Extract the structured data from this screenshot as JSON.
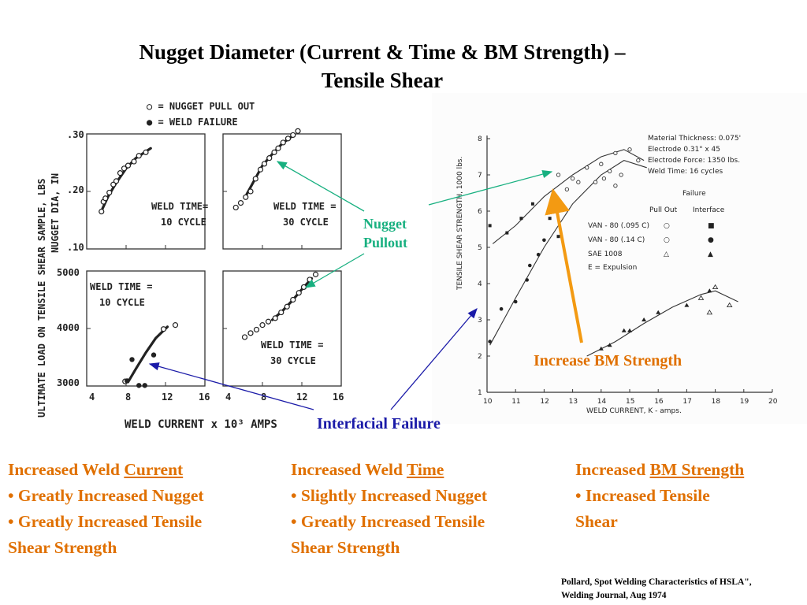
{
  "slide": {
    "title_line1": "Nugget Diameter (Current & Time & BM Strength) –",
    "title_line2": "Tensile Shear",
    "annotations": {
      "nugget_pullout_line1": "Nugget",
      "nugget_pullout_line2": "Pullout",
      "increase_bm": "Increase BM Strength",
      "interfacial_failure": "Interfacial Failure"
    },
    "columns": [
      {
        "prefix": "Increased Weld ",
        "keyword": "Current",
        "line1": "• Greatly Increased Nugget",
        "line2": "• Greatly Increased Tensile",
        "line3": "Shear Strength"
      },
      {
        "prefix": "Increased Weld ",
        "keyword": "Time",
        "line1": "• Slightly Increased Nugget",
        "line2": "• Greatly Increased Tensile",
        "line3": "Shear Strength"
      },
      {
        "prefix": "Increased ",
        "keyword": "BM Strength",
        "line1": "• Increased Tensile",
        "line2": "Shear",
        "line3": ""
      }
    ],
    "citation_line1": "Pollard, Spot Welding Characteristics of HSLA\",",
    "citation_line2": "Welding Journal, Aug 1974",
    "colors": {
      "orange": "#e07000",
      "green": "#18b080",
      "blue": "#1a1aa8",
      "arrow_orange": "#f39a12"
    }
  },
  "chart_data": [
    {
      "type": "scatter",
      "panel": "nugget-10-cycle",
      "legend": [
        "○ = NUGGET PULL OUT",
        "● = WELD FAILURE"
      ],
      "ylabel": "NUGGET DIA, IN",
      "yticks": [
        ".10",
        ".20",
        ".30"
      ],
      "ylim": [
        0.1,
        0.3
      ],
      "xlim": [
        4,
        16
      ],
      "label_line1": "WELD TIME=",
      "label_line2": "10 CYCLE",
      "pullout": [
        [
          5.5,
          0.165
        ],
        [
          5.7,
          0.182
        ],
        [
          5.9,
          0.188
        ],
        [
          6.3,
          0.198
        ],
        [
          6.7,
          0.212
        ],
        [
          7.0,
          0.218
        ],
        [
          7.4,
          0.232
        ],
        [
          7.8,
          0.24
        ],
        [
          8.2,
          0.245
        ],
        [
          8.8,
          0.252
        ],
        [
          9.3,
          0.262
        ],
        [
          10.0,
          0.268
        ]
      ],
      "fitline": [
        [
          5.6,
          0.17
        ],
        [
          6.2,
          0.192
        ],
        [
          7.0,
          0.215
        ],
        [
          8.0,
          0.24
        ],
        [
          9.0,
          0.258
        ],
        [
          10.5,
          0.275
        ]
      ]
    },
    {
      "type": "scatter",
      "panel": "nugget-30-cycle",
      "ylim": [
        0.1,
        0.3
      ],
      "xlim": [
        4,
        16
      ],
      "label_line1": "WELD TIME =",
      "label_line2": "30 CYCLE",
      "pullout": [
        [
          5.3,
          0.172
        ],
        [
          5.8,
          0.18
        ],
        [
          6.3,
          0.19
        ],
        [
          6.8,
          0.2
        ],
        [
          7.3,
          0.222
        ],
        [
          7.8,
          0.238
        ],
        [
          8.2,
          0.248
        ],
        [
          8.7,
          0.258
        ],
        [
          9.2,
          0.268
        ],
        [
          9.6,
          0.275
        ],
        [
          10.1,
          0.285
        ],
        [
          10.6,
          0.292
        ],
        [
          11.1,
          0.298
        ],
        [
          11.6,
          0.305
        ]
      ],
      "fitline": [
        [
          6.4,
          0.195
        ],
        [
          7.2,
          0.22
        ],
        [
          8.0,
          0.245
        ],
        [
          9.0,
          0.265
        ],
        [
          10.0,
          0.283
        ],
        [
          11.0,
          0.296
        ]
      ]
    },
    {
      "type": "scatter",
      "panel": "load-10-cycle",
      "ylabel": "ULTIMATE LOAD ON TENSILE SHEAR SAMPLE, LBS",
      "yticks": [
        "3000",
        "4000",
        "5000"
      ],
      "ylim": [
        3000,
        5000
      ],
      "xticks": [
        "4",
        "8",
        "12",
        "16"
      ],
      "xlim": [
        4,
        16
      ],
      "xlabel": "WELD CURRENT x 10³ AMPS",
      "label_line1": "WELD TIME =",
      "label_line2": "10 CYCLE",
      "pullout": [
        [
          11.8,
          3990
        ],
        [
          13.0,
          4060
        ],
        [
          7.9,
          3080
        ]
      ],
      "failure": [
        [
          8.1,
          3090
        ],
        [
          8.6,
          3460
        ],
        [
          9.3,
          3010
        ],
        [
          9.9,
          3010
        ],
        [
          10.8,
          3540
        ]
      ],
      "fitline": [
        [
          8.2,
          3070
        ],
        [
          9.0,
          3300
        ],
        [
          10.0,
          3580
        ],
        [
          11.0,
          3830
        ],
        [
          12.2,
          4030
        ]
      ]
    },
    {
      "type": "scatter",
      "panel": "load-30-cycle",
      "ylim": [
        3000,
        5000
      ],
      "xticks": [
        "4",
        "8",
        "12",
        "16"
      ],
      "xlim": [
        4,
        16
      ],
      "label_line1": "WELD TIME =",
      "label_line2": "30 CYCLE",
      "pullout": [
        [
          6.2,
          3850
        ],
        [
          6.8,
          3920
        ],
        [
          7.4,
          3980
        ],
        [
          8.0,
          4060
        ],
        [
          8.6,
          4120
        ],
        [
          9.3,
          4180
        ],
        [
          9.9,
          4280
        ],
        [
          10.5,
          4380
        ],
        [
          11.1,
          4500
        ],
        [
          11.7,
          4620
        ],
        [
          12.2,
          4720
        ],
        [
          12.8,
          4850
        ],
        [
          13.4,
          4940
        ]
      ],
      "fitline": [
        [
          9.0,
          4150
        ],
        [
          10.0,
          4300
        ],
        [
          11.0,
          4480
        ],
        [
          12.0,
          4680
        ],
        [
          13.0,
          4870
        ]
      ]
    },
    {
      "type": "scatter",
      "panel": "tensile-shear-strength",
      "xlabel": "WELD CURRENT, K - amps.",
      "ylabel": "TENSILE SHEAR STRENGTH, 1000 lbs.",
      "xlim": [
        10,
        20
      ],
      "ylim": [
        1,
        8
      ],
      "xticks": [
        "10",
        "11",
        "12",
        "13",
        "14",
        "15",
        "16",
        "17",
        "18",
        "19",
        "20"
      ],
      "yticks": [
        "1",
        "2",
        "3",
        "4",
        "5",
        "6",
        "7",
        "8"
      ],
      "info_lines": [
        "Material Thickness: 0.075'",
        "Electrode 0.31\" x 45",
        "Electrode Force: 1350 lbs.",
        "Weld Time: 16 cycles"
      ],
      "legend_title": "Failure",
      "legend_cols": [
        "Pull Out",
        "Interface"
      ],
      "legend_rows": [
        {
          "label": "VAN - 80 (.095 C)",
          "pull_out": "○",
          "interface": "■"
        },
        {
          "label": "VAN - 80 (.14 C)",
          "pull_out": "○",
          "interface": "●"
        },
        {
          "label": "SAE 1008",
          "pull_out": "△",
          "interface": "▲"
        },
        {
          "label": "E = Expulsion",
          "pull_out": "",
          "interface": ""
        }
      ],
      "series": [
        {
          "name": "VAN - 80 (.095 C)",
          "pullout": [
            [
              12.5,
              7.0
            ],
            [
              13.0,
              6.9
            ],
            [
              13.5,
              7.2
            ],
            [
              14.0,
              7.3
            ],
            [
              14.5,
              7.6
            ],
            [
              15.0,
              7.7
            ],
            [
              15.3,
              7.4
            ]
          ],
          "interface": [
            [
              10.1,
              5.6
            ],
            [
              10.7,
              5.4
            ],
            [
              11.2,
              5.8
            ],
            [
              11.6,
              6.2
            ],
            [
              12.2,
              5.8
            ],
            [
              12.5,
              5.3
            ],
            [
              12.3,
              6.3
            ]
          ],
          "fitline": [
            [
              10.2,
              5.1
            ],
            [
              11.0,
              5.6
            ],
            [
              12.0,
              6.4
            ],
            [
              13.0,
              7.0
            ],
            [
              14.0,
              7.5
            ],
            [
              14.8,
              7.7
            ],
            [
              15.5,
              7.4
            ]
          ]
        },
        {
          "name": "VAN - 80 (.14 C)",
          "pullout": [
            [
              12.8,
              6.6
            ],
            [
              13.2,
              6.8
            ],
            [
              13.8,
              6.8
            ],
            [
              14.1,
              6.9
            ],
            [
              14.3,
              7.1
            ],
            [
              14.5,
              6.7
            ],
            [
              14.7,
              7.0
            ]
          ],
          "interface": [
            [
              10.1,
              2.4
            ],
            [
              10.5,
              3.3
            ],
            [
              11.0,
              3.5
            ],
            [
              11.4,
              4.1
            ],
            [
              11.5,
              4.5
            ],
            [
              12.0,
              5.2
            ],
            [
              11.8,
              4.8
            ]
          ],
          "fitline": [
            [
              10.1,
              2.3
            ],
            [
              11.0,
              3.6
            ],
            [
              12.0,
              5.0
            ],
            [
              13.0,
              6.2
            ],
            [
              14.0,
              7.0
            ],
            [
              14.8,
              7.4
            ],
            [
              15.6,
              7.2
            ]
          ]
        },
        {
          "name": "SAE 1008",
          "pullout": [
            [
              17.5,
              3.6
            ],
            [
              18.0,
              3.9
            ],
            [
              18.5,
              3.4
            ],
            [
              17.8,
              3.2
            ]
          ],
          "interface": [
            [
              14.0,
              2.2
            ],
            [
              14.3,
              2.3
            ],
            [
              14.8,
              2.7
            ],
            [
              15.0,
              2.7
            ],
            [
              15.5,
              3.0
            ],
            [
              16.0,
              3.2
            ],
            [
              17.0,
              3.4
            ],
            [
              17.8,
              3.8
            ]
          ],
          "fitline": [
            [
              13.5,
              2.0
            ],
            [
              14.5,
              2.4
            ],
            [
              15.5,
              2.9
            ],
            [
              16.5,
              3.35
            ],
            [
              17.5,
              3.7
            ],
            [
              18.0,
              3.8
            ],
            [
              18.8,
              3.5
            ]
          ]
        }
      ]
    }
  ]
}
